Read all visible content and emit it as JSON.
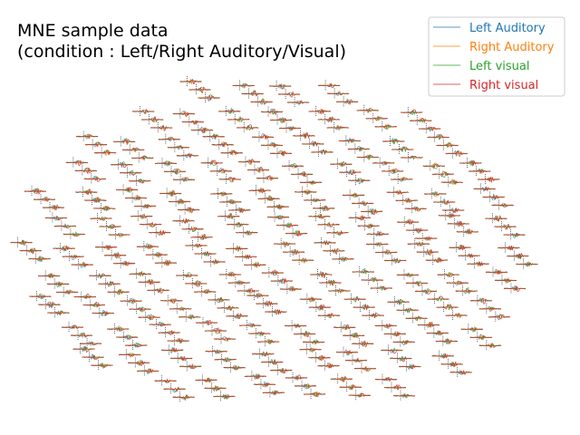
{
  "chart_data": {
    "type": "line",
    "title_lines": [
      "MNE sample data",
      "(condition : Left/Right Auditory/Visual)"
    ],
    "xlabel": "",
    "ylabel": "",
    "grid": false,
    "legend_position": "top-right",
    "series": [
      {
        "name": "Left Auditory",
        "color": "#1f77b4"
      },
      {
        "name": "Right Auditory",
        "color": "#ff7f0e"
      },
      {
        "name": "Left visual",
        "color": "#2ca02c"
      },
      {
        "name": "Right visual",
        "color": "#d62728"
      }
    ],
    "sensor_layout": "topographic grid of evoked response traces, one small subplot per MEG sensor (approx. 102 positions x 3 channels)"
  }
}
